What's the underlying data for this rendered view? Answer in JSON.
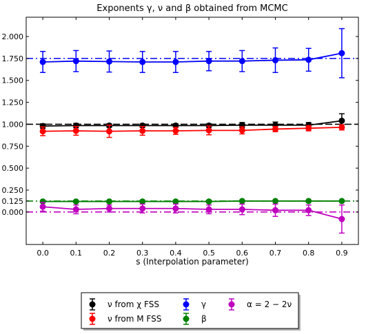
{
  "chart_data": {
    "type": "line",
    "title": "Exponents γ, ν and β obtained from MCMC",
    "xlabel": "s (Interpolation parameter)",
    "ylabel": "",
    "xlim": [
      -0.05,
      0.95
    ],
    "ylim": [
      -0.37,
      2.22
    ],
    "x": [
      0.0,
      0.1,
      0.2,
      0.3,
      0.4,
      0.5,
      0.6,
      0.7,
      0.8,
      0.9
    ],
    "x_ticks": [
      "0.0",
      "0.1",
      "0.2",
      "0.3",
      "0.4",
      "0.5",
      "0.6",
      "0.7",
      "0.8",
      "0.9"
    ],
    "y_ticks": [
      {
        "value": 2.0,
        "label": "2.000"
      },
      {
        "value": 1.75,
        "label": "1.750"
      },
      {
        "value": 1.5,
        "label": "1.500"
      },
      {
        "value": 1.25,
        "label": "1.250"
      },
      {
        "value": 1.0,
        "label": "1.000"
      },
      {
        "value": 0.75,
        "label": "0.750"
      },
      {
        "value": 0.5,
        "label": "0.500"
      },
      {
        "value": 0.25,
        "label": "0.250"
      },
      {
        "value": 0.125,
        "label": "0.125"
      },
      {
        "value": 0.0,
        "label": "0.000"
      }
    ],
    "reference_lines": [
      {
        "value": 1.75,
        "color": "#0000ff",
        "style": "dashdot"
      },
      {
        "value": 1.0,
        "color": "#000000",
        "style": "dashed"
      },
      {
        "value": 0.125,
        "color": "#008000",
        "style": "dashdot"
      },
      {
        "value": 0.0,
        "color": "#bf00bf",
        "style": "dashdot"
      }
    ],
    "series": [
      {
        "name": "ν from χ FSS",
        "color": "#000000",
        "values": [
          0.98,
          0.985,
          0.985,
          0.985,
          0.985,
          0.985,
          0.99,
          0.99,
          0.99,
          1.04
        ],
        "errors": [
          0.025,
          0.025,
          0.02,
          0.02,
          0.02,
          0.02,
          0.03,
          0.035,
          0.03,
          0.08
        ]
      },
      {
        "name": "ν from M FSS",
        "color": "#ff0000",
        "values": [
          0.92,
          0.925,
          0.92,
          0.925,
          0.925,
          0.93,
          0.93,
          0.945,
          0.955,
          0.965
        ],
        "errors": [
          0.05,
          0.05,
          0.07,
          0.05,
          0.04,
          0.05,
          0.04,
          0.03,
          0.03,
          0.03
        ]
      },
      {
        "name": "γ",
        "color": "#0000ff",
        "values": [
          1.71,
          1.72,
          1.715,
          1.71,
          1.71,
          1.72,
          1.72,
          1.73,
          1.735,
          1.81
        ],
        "errors": [
          0.12,
          0.12,
          0.12,
          0.12,
          0.12,
          0.11,
          0.12,
          0.14,
          0.13,
          0.28
        ]
      },
      {
        "name": "β",
        "color": "#008000",
        "values": [
          0.12,
          0.12,
          0.12,
          0.12,
          0.12,
          0.12,
          0.125,
          0.125,
          0.125,
          0.125
        ],
        "errors": [
          0.01,
          0.01,
          0.01,
          0.01,
          0.01,
          0.01,
          0.01,
          0.01,
          0.01,
          0.01
        ]
      },
      {
        "name": "α = 2 − 2ν",
        "color": "#bf00bf",
        "values": [
          0.06,
          0.03,
          0.04,
          0.04,
          0.04,
          0.03,
          0.03,
          0.02,
          0.02,
          -0.08
        ],
        "errors": [
          0.05,
          0.05,
          0.04,
          0.05,
          0.05,
          0.05,
          0.06,
          0.07,
          0.06,
          0.16
        ]
      }
    ],
    "legend_position": "below-center",
    "grid": false
  }
}
